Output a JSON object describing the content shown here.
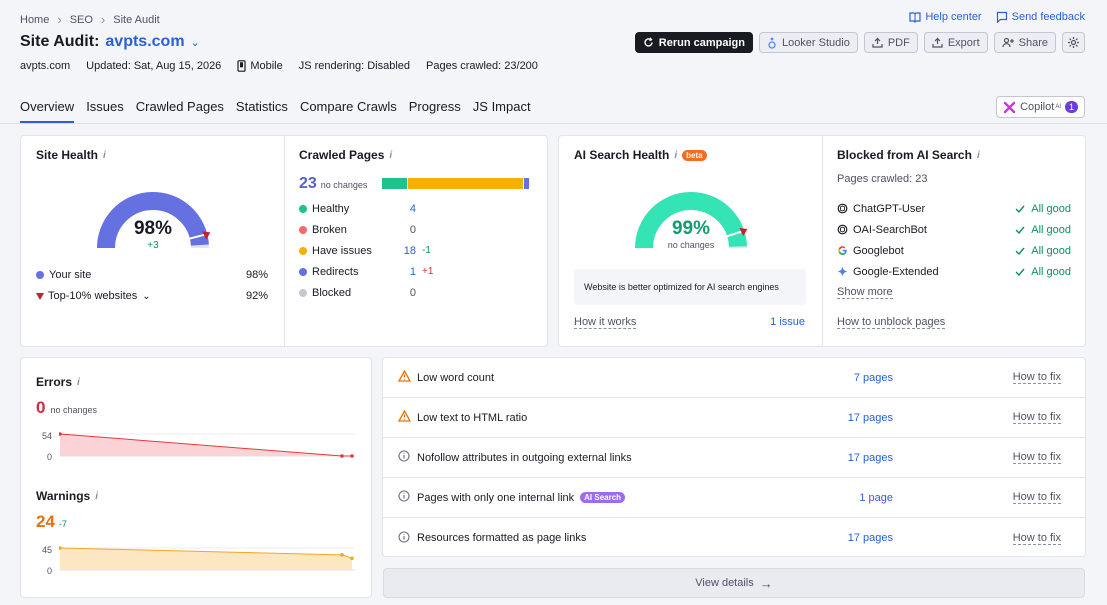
{
  "breadcrumbs": [
    "Home",
    "SEO",
    "Site Audit"
  ],
  "top_links": {
    "help": "Help center",
    "feedback": "Send feedback"
  },
  "title": {
    "prefix": "Site Audit:",
    "domain": "avpts.com"
  },
  "meta": {
    "domain": "avpts.com",
    "updated": "Updated: Sat, Aug 15, 2026",
    "device": "Mobile",
    "js_rendering": "JS rendering: Disabled",
    "pages_crawled": "Pages crawled: 23/200"
  },
  "toolbar": {
    "rerun": "Rerun campaign",
    "looker": "Looker Studio",
    "pdf": "PDF",
    "export": "Export",
    "share": "Share"
  },
  "tabs": [
    "Overview",
    "Issues",
    "Crawled Pages",
    "Statistics",
    "Compare Crawls",
    "Progress",
    "JS Impact"
  ],
  "copilot": {
    "label": "Copilot",
    "sup": "AI",
    "count": "1"
  },
  "site_health": {
    "title": "Site Health",
    "value": "98%",
    "value_num": 98,
    "delta": "+3",
    "your_site_label": "Your site",
    "your_site_value": "98%",
    "top10_label": "Top-10% websites",
    "top10_value": "92%",
    "top10_num": 92,
    "color": "#6571e0"
  },
  "crawled_pages": {
    "title": "Crawled Pages",
    "total": "23",
    "total_note": "no changes",
    "rows": [
      {
        "name": "Healthy",
        "value": "4",
        "delta": "",
        "color": "#1bc48f",
        "count": 4
      },
      {
        "name": "Broken",
        "value": "0",
        "delta": "",
        "color": "#f36b6b",
        "count": 0
      },
      {
        "name": "Have issues",
        "value": "18",
        "delta": "-1",
        "color": "#f5b100",
        "count": 18
      },
      {
        "name": "Redirects",
        "value": "1",
        "delta": "+1",
        "color": "#6571e0",
        "count": 1
      },
      {
        "name": "Blocked",
        "value": "0",
        "delta": "",
        "color": "#c4c7d3",
        "count": 0
      }
    ]
  },
  "ai_health": {
    "title": "AI Search Health",
    "beta": "beta",
    "value": "99%",
    "value_num": 99,
    "note": "no changes",
    "message": "Website is better optimized for AI search engines",
    "how_it_works": "How it works",
    "issues_link": "1 issue",
    "color": "#35e4b4"
  },
  "blocked_ai": {
    "title": "Blocked from AI Search",
    "pages_crawled": "Pages crawled: 23",
    "bots": [
      {
        "name": "ChatGPT-User",
        "status": "All good",
        "icon": "openai-icon"
      },
      {
        "name": "OAI-SearchBot",
        "status": "All good",
        "icon": "openai-icon"
      },
      {
        "name": "Googlebot",
        "status": "All good",
        "icon": "google-icon"
      },
      {
        "name": "Google-Extended",
        "status": "All good",
        "icon": "gemini-icon"
      }
    ],
    "show_more": "Show more",
    "unblock": "How to unblock pages"
  },
  "errors": {
    "title": "Errors",
    "value": "0",
    "note": "no changes",
    "y_ticks": [
      "54",
      "0"
    ],
    "series": [
      54,
      0,
      0
    ],
    "color": "#e23b3b"
  },
  "warnings": {
    "title": "Warnings",
    "value": "24",
    "delta": "-7",
    "y_ticks": [
      "45",
      "0"
    ],
    "series": [
      45,
      31,
      24
    ],
    "color": "#f5a623"
  },
  "issues": [
    {
      "text": "Low word count",
      "count": "7 pages",
      "fix": "How to fix",
      "type": "warning",
      "pill": ""
    },
    {
      "text": "Low text to HTML ratio",
      "count": "17 pages",
      "fix": "How to fix",
      "type": "warning",
      "pill": ""
    },
    {
      "text": "Nofollow attributes in outgoing external links",
      "count": "17 pages",
      "fix": "How to fix",
      "type": "notice",
      "pill": ""
    },
    {
      "text": "Pages with only one internal link",
      "count": "1 page",
      "fix": "How to fix",
      "type": "notice",
      "pill": "AI Search"
    },
    {
      "text": "Resources formatted as page links",
      "count": "17 pages",
      "fix": "How to fix",
      "type": "notice",
      "pill": ""
    }
  ],
  "view_details": "View details"
}
